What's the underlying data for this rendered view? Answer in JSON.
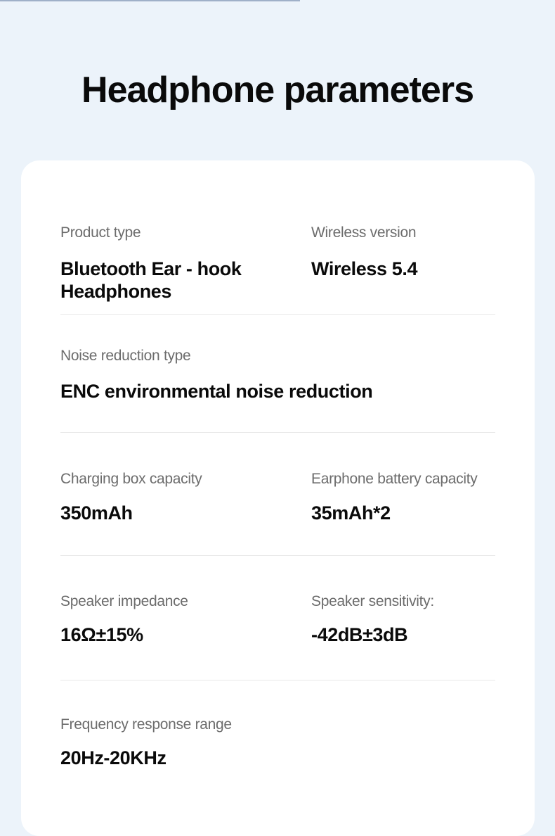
{
  "title": "Headphone parameters",
  "params": [
    {
      "label": "Product type",
      "value": "Bluetooth Ear - hook Headphones"
    },
    {
      "label": "Wireless version",
      "value": "Wireless 5.4"
    },
    {
      "label": "Noise reduction type",
      "value": "ENC environmental noise reduction"
    },
    {
      "label": "Charging box capacity",
      "value": "350mAh"
    },
    {
      "label": "Earphone battery capacity",
      "value": "35mAh*2"
    },
    {
      "label": "Speaker impedance",
      "value": "16Ω±15%"
    },
    {
      "label": "Speaker sensitivity:",
      "value": "-42dB±3dB"
    },
    {
      "label": "Frequency response range",
      "value": "20Hz-20KHz"
    }
  ]
}
